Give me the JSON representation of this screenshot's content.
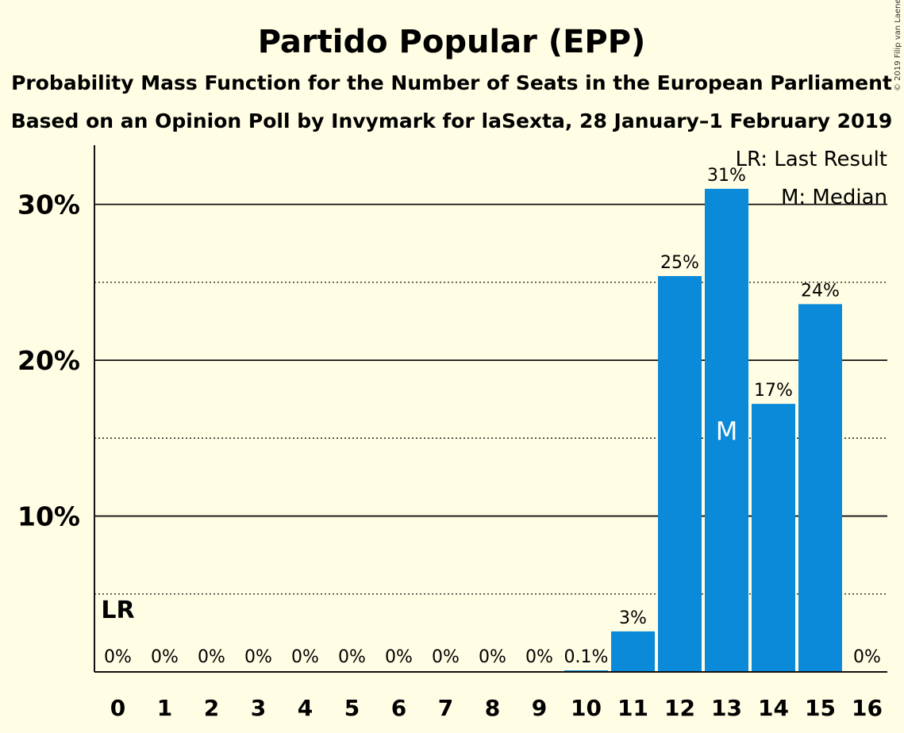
{
  "chart_data": {
    "type": "bar",
    "title": "Partido Popular (EPP)",
    "subtitle_line1": "Probability Mass Function for the Number of Seats in the European Parliament",
    "subtitle_line2": "Based on an Opinion Poll by Invymark for laSexta, 28 January–1 February 2019",
    "categories": [
      "0",
      "1",
      "2",
      "3",
      "4",
      "5",
      "6",
      "7",
      "8",
      "9",
      "10",
      "11",
      "12",
      "13",
      "14",
      "15",
      "16"
    ],
    "values": [
      0,
      0,
      0,
      0,
      0,
      0,
      0,
      0,
      0,
      0,
      0.1,
      2.6,
      25.4,
      31.0,
      17.2,
      23.6,
      0
    ],
    "value_labels": [
      "0%",
      "0%",
      "0%",
      "0%",
      "0%",
      "0%",
      "0%",
      "0%",
      "0%",
      "0%",
      "0.1%",
      "3%",
      "25%",
      "31%",
      "17%",
      "24%",
      "0%"
    ],
    "ylim": [
      0,
      33.8
    ],
    "yticks": [
      10,
      20,
      30
    ],
    "ytick_labels": [
      "10%",
      "20%",
      "30%"
    ],
    "minor_gridlines": [
      5,
      15,
      25
    ],
    "bar_color": "#0A8AD8",
    "background_color": "#FFFDE3",
    "last_result_index": 0,
    "last_result_marker": "LR",
    "median_index": 13,
    "median_marker": "M",
    "legend": [
      "LR: Last Result",
      "M: Median"
    ],
    "legend_position": "top-right",
    "credit": "© 2019 Filip van Laenen"
  }
}
